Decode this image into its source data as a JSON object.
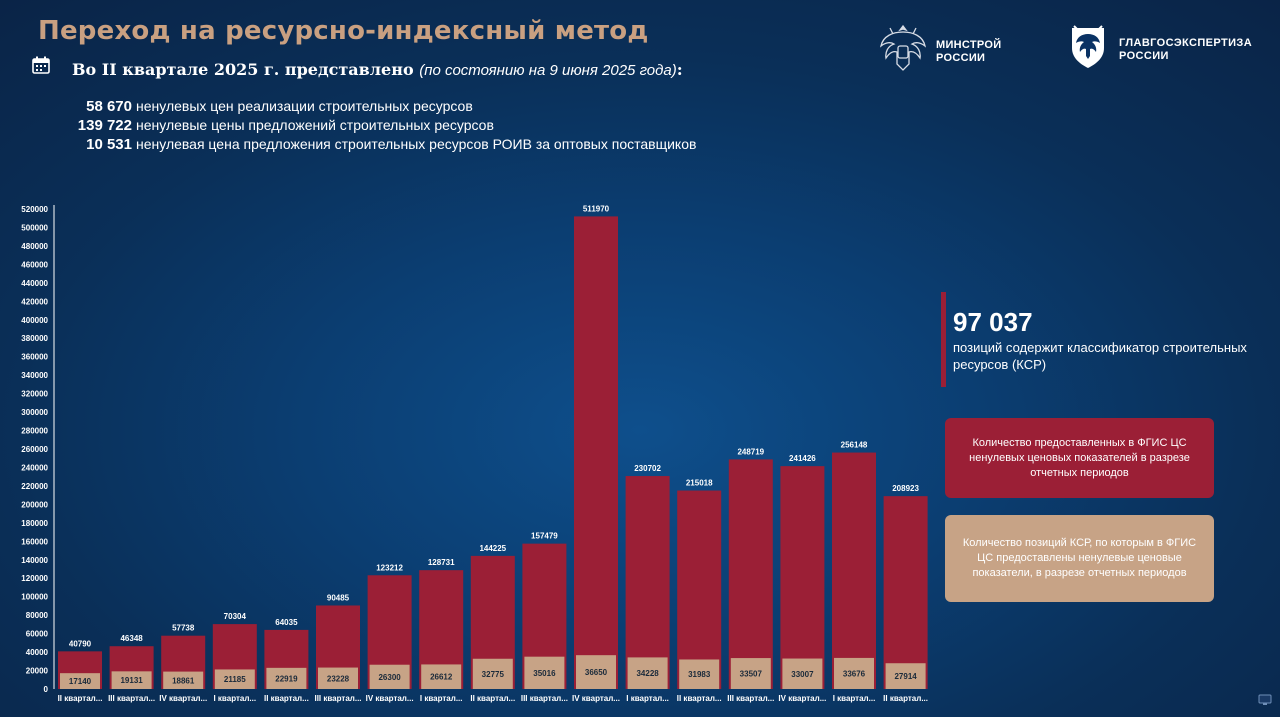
{
  "header": {
    "title": "Переход на ресурсно-индексный метод",
    "subtitle_main": "Во II квартале 2025 г. представлено",
    "subtitle_note": "(по состоянию на 9 июня 2025 года)",
    "subtitle_colon": ":"
  },
  "stats": [
    {
      "number": "58 670",
      "text": "ненулевых цен реализации строительных ресурсов"
    },
    {
      "number": "139 722",
      "text": "ненулевые цены предложений строительных ресурсов"
    },
    {
      "number": "10 531",
      "text": "ненулевая цена предложения строительных ресурсов РОИВ за оптовых поставщиков"
    }
  ],
  "logos": {
    "minstroy_line1": "МИНСТРОЙ",
    "minstroy_line2": "РОССИИ",
    "glavgos_line1": "ГЛАВГОСЭКСПЕРТИЗА",
    "glavgos_line2": "РОССИИ"
  },
  "ksr": {
    "number": "97 037",
    "text": "позиций содержит классификатор строительных ресурсов (КСР)"
  },
  "legend": {
    "red_text": "Количество предоставленных в ФГИС ЦС ненулевых ценовых показателей в разрезе отчетных периодов",
    "beige_text": "Количество позиций КСР, по которым в ФГИС ЦС предоставлены ненулевые ценовые показатели, в разрезе отчетных периодов"
  },
  "colors": {
    "red": "#9b1f36",
    "beige": "#c7a386",
    "title": "#c9a081"
  },
  "icons": [
    "calendar-icon",
    "eagle-emblem-icon",
    "glavgosexpertiza-emblem-icon",
    "monitor-icon"
  ],
  "chart_data": {
    "type": "bar",
    "categories": [
      "II квартал...",
      "III квартал...",
      "IV квартал...",
      "I квартал...",
      "II квартал...",
      "III квартал...",
      "IV квартал...",
      "I квартал...",
      "II квартал...",
      "III квартал...",
      "IV квартал...",
      "I квартал...",
      "II квартал...",
      "III квартал...",
      "IV квартал...",
      "I квартал...",
      "II квартал..."
    ],
    "series": [
      {
        "values": [
          40790,
          46348,
          57738,
          70304,
          64035,
          90485,
          123212,
          128731,
          144225,
          157479,
          511970,
          230702,
          215018,
          248719,
          241426,
          256148,
          208923
        ],
        "color": "#9b1f36"
      },
      {
        "values": [
          17140,
          19131,
          18861,
          21185,
          22919,
          23228,
          26300,
          26612,
          32775,
          35016,
          36650,
          34228,
          31983,
          33507,
          33007,
          33676,
          27914
        ],
        "color": "#c7a386"
      }
    ],
    "ylim": [
      0,
      520000
    ],
    "yticks": [
      0,
      20000,
      40000,
      60000,
      80000,
      100000,
      120000,
      140000,
      160000,
      180000,
      200000,
      220000,
      240000,
      260000,
      280000,
      300000,
      320000,
      340000,
      360000,
      380000,
      400000,
      420000,
      440000,
      460000,
      480000,
      500000,
      520000
    ],
    "grid": false,
    "overlapping": true
  }
}
